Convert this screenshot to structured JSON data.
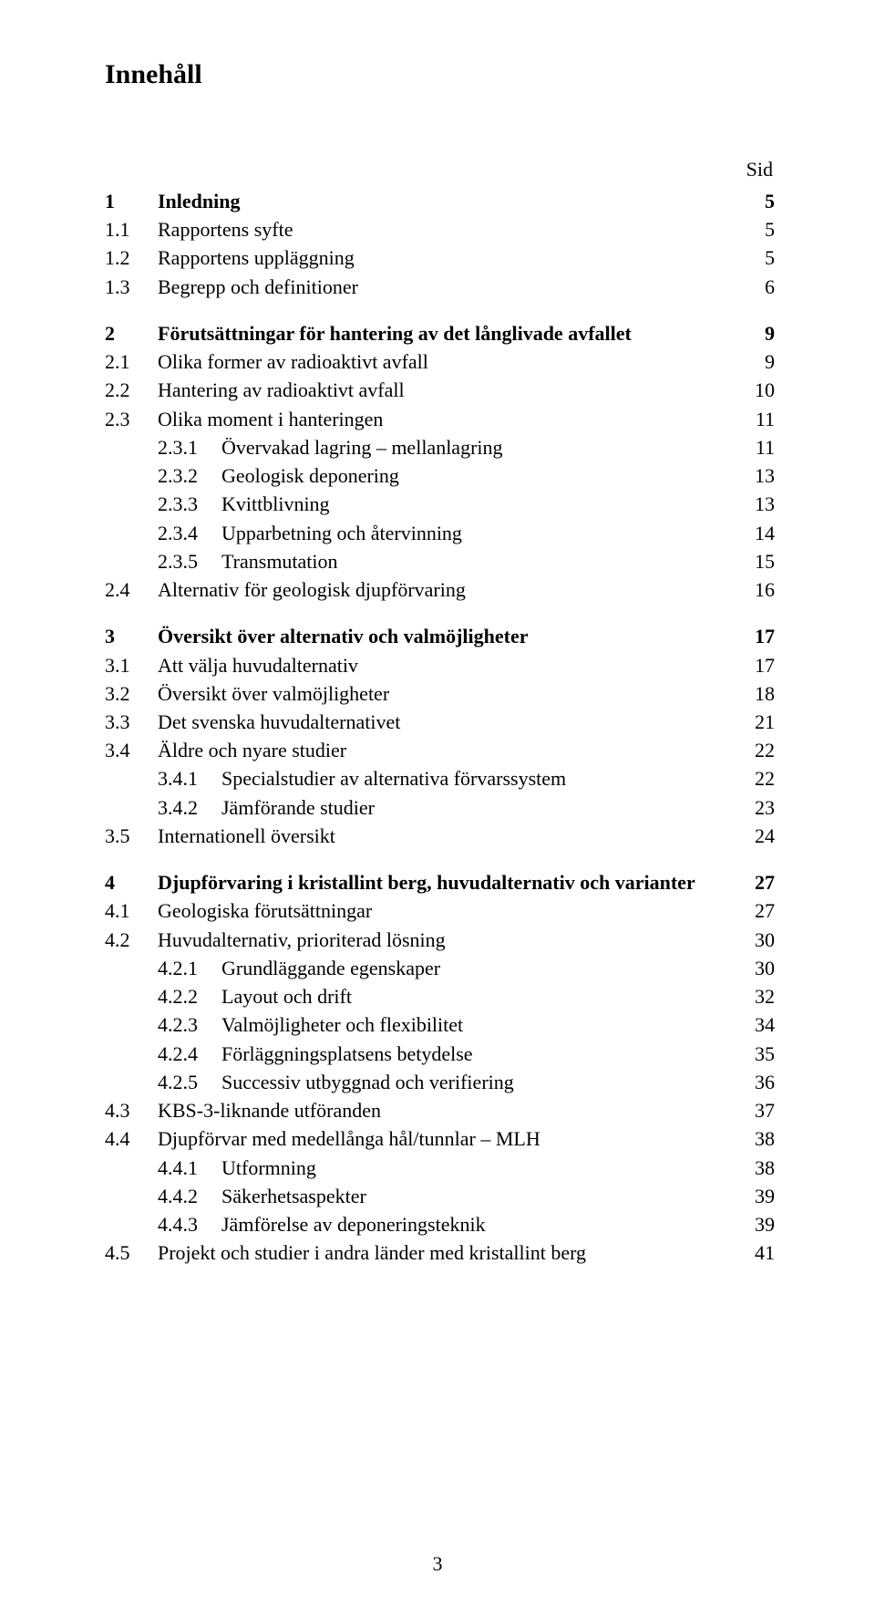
{
  "title": "Innehåll",
  "sid_label": "Sid",
  "page_number": "3",
  "sections": [
    {
      "rows": [
        {
          "num": "1",
          "text": "Inledning",
          "page": "5",
          "bold": true
        },
        {
          "num": "1.1",
          "text": "Rapportens syfte",
          "page": "5"
        },
        {
          "num": "1.2",
          "text": "Rapportens uppläggning",
          "page": "5"
        },
        {
          "num": "1.3",
          "text": "Begrepp och definitioner",
          "page": "6"
        }
      ]
    },
    {
      "rows": [
        {
          "num": "2",
          "text": "Förutsättningar för hantering av det långlivade avfallet",
          "page": "9",
          "bold": true
        },
        {
          "num": "2.1",
          "text": "Olika former av radioaktivt avfall",
          "page": "9"
        },
        {
          "num": "2.2",
          "text": "Hantering av radioaktivt avfall",
          "page": "10"
        },
        {
          "num": "2.3",
          "text": "Olika moment i hanteringen",
          "page": "11"
        },
        {
          "num": "",
          "sub": "2.3.1",
          "text": "Övervakad lagring – mellanlagring",
          "page": "11"
        },
        {
          "num": "",
          "sub": "2.3.2",
          "text": "Geologisk deponering",
          "page": "13"
        },
        {
          "num": "",
          "sub": "2.3.3",
          "text": "Kvittblivning",
          "page": "13"
        },
        {
          "num": "",
          "sub": "2.3.4",
          "text": "Upparbetning och återvinning",
          "page": "14"
        },
        {
          "num": "",
          "sub": "2.3.5",
          "text": "Transmutation",
          "page": "15"
        },
        {
          "num": "2.4",
          "text": "Alternativ för geologisk djupförvaring",
          "page": "16"
        }
      ]
    },
    {
      "rows": [
        {
          "num": "3",
          "text": "Översikt över alternativ och valmöjligheter",
          "page": "17",
          "bold": true
        },
        {
          "num": "3.1",
          "text": "Att välja huvudalternativ",
          "page": "17"
        },
        {
          "num": "3.2",
          "text": "Översikt över valmöjligheter",
          "page": "18"
        },
        {
          "num": "3.3",
          "text": "Det svenska huvudalternativet",
          "page": "21"
        },
        {
          "num": "3.4",
          "text": "Äldre och nyare studier",
          "page": "22"
        },
        {
          "num": "",
          "sub": "3.4.1",
          "text": "Specialstudier av alternativa förvarssystem",
          "page": "22"
        },
        {
          "num": "",
          "sub": "3.4.2",
          "text": "Jämförande studier",
          "page": "23"
        },
        {
          "num": "3.5",
          "text": "Internationell översikt",
          "page": "24"
        }
      ]
    },
    {
      "rows": [
        {
          "num": "4",
          "text": "Djupförvaring i kristallint berg, huvudalternativ och varianter",
          "page": "27",
          "bold": true
        },
        {
          "num": "4.1",
          "text": "Geologiska förutsättningar",
          "page": "27"
        },
        {
          "num": "4.2",
          "text": "Huvudalternativ, prioriterad lösning",
          "page": "30"
        },
        {
          "num": "",
          "sub": "4.2.1",
          "text": "Grundläggande egenskaper",
          "page": "30"
        },
        {
          "num": "",
          "sub": "4.2.2",
          "text": "Layout och drift",
          "page": "32"
        },
        {
          "num": "",
          "sub": "4.2.3",
          "text": "Valmöjligheter och flexibilitet",
          "page": "34"
        },
        {
          "num": "",
          "sub": "4.2.4",
          "text": "Förläggningsplatsens betydelse",
          "page": "35"
        },
        {
          "num": "",
          "sub": "4.2.5",
          "text": "Successiv utbyggnad och verifiering",
          "page": "36"
        },
        {
          "num": "4.3",
          "text": "KBS-3-liknande utföranden",
          "page": "37"
        },
        {
          "num": "4.4",
          "text": "Djupförvar med medellånga hål/tunnlar – MLH",
          "page": "38"
        },
        {
          "num": "",
          "sub": "4.4.1",
          "text": "Utformning",
          "page": "38"
        },
        {
          "num": "",
          "sub": "4.4.2",
          "text": "Säkerhetsaspekter",
          "page": "39"
        },
        {
          "num": "",
          "sub": "4.4.3",
          "text": "Jämförelse av deponeringsteknik",
          "page": "39"
        },
        {
          "num": "4.5",
          "text": "Projekt och studier i andra länder med kristallint berg",
          "page": "41"
        }
      ]
    }
  ]
}
